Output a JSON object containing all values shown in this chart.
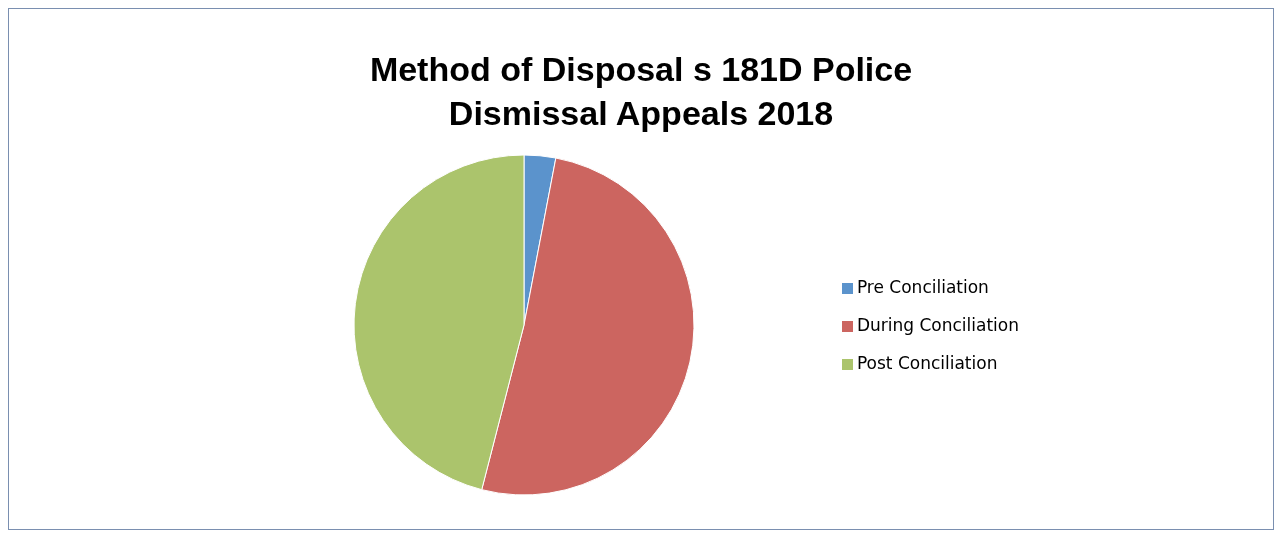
{
  "chart_data": {
    "type": "pie",
    "title": "Method of Disposal s 181D Police\nDismissal Appeals 2018",
    "categories": [
      "Pre Conciliation",
      "During Conciliation",
      "Post Conciliation"
    ],
    "values": [
      3,
      51,
      46
    ],
    "colors": [
      "#5b93cc",
      "#cc6560",
      "#abc46c"
    ],
    "legend": "right"
  }
}
